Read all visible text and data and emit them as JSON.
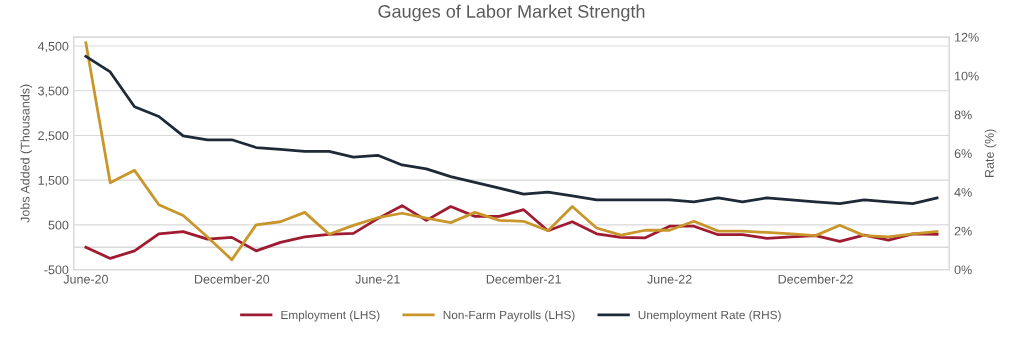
{
  "chart_data": {
    "type": "line",
    "title": "Gauges of Labor Market Strength",
    "ylabel": "Jobs Added (Thousands)",
    "y2label": "Rate (%)",
    "categories": [
      "June-20",
      null,
      null,
      null,
      null,
      null,
      "December-20",
      null,
      null,
      null,
      null,
      null,
      "June-21",
      null,
      null,
      null,
      null,
      null,
      "December-21",
      null,
      null,
      null,
      null,
      null,
      "June-22",
      null,
      null,
      null,
      null,
      null,
      "December-22",
      null,
      null,
      null,
      null,
      null
    ],
    "series": [
      {
        "name": "Employment (LHS)",
        "color": "#9e1b32",
        "values": [
          0,
          -250,
          -80,
          300,
          350,
          180,
          220,
          -80,
          110,
          230,
          290,
          310,
          640,
          930,
          600,
          910,
          690,
          690,
          840,
          370,
          570,
          300,
          220,
          210,
          470,
          470,
          280,
          280,
          200,
          230,
          260,
          130,
          270,
          160,
          300,
          290
        ]
      },
      {
        "name": "Non-Farm Payrolls (LHS)",
        "color": "#c9962b",
        "values": [
          4570,
          1440,
          1720,
          950,
          710,
          230,
          -280,
          500,
          570,
          780,
          290,
          490,
          660,
          760,
          650,
          550,
          780,
          600,
          580,
          370,
          910,
          430,
          270,
          380,
          380,
          580,
          360,
          360,
          330,
          300,
          260,
          490,
          260,
          230,
          300,
          350
        ]
      },
      {
        "name": "Unemployment Rate (RHS)",
        "color": "#1f2a38",
        "axis": "y2",
        "values": [
          11.0,
          10.2,
          8.4,
          7.9,
          6.9,
          6.7,
          6.7,
          6.3,
          6.2,
          6.1,
          6.1,
          5.8,
          5.9,
          5.4,
          5.2,
          4.8,
          4.5,
          4.2,
          3.9,
          4.0,
          3.8,
          3.6,
          3.6,
          3.6,
          3.6,
          3.5,
          3.7,
          3.5,
          3.7,
          3.6,
          3.5,
          3.4,
          3.6,
          3.5,
          3.4,
          3.7
        ]
      }
    ],
    "ylim": [
      -500,
      4700
    ],
    "yticks": [
      {
        "value": -500,
        "label": "-500"
      },
      500,
      {
        "value": 1500,
        "label": "1,500"
      },
      {
        "value": 2500,
        "label": "2,500"
      },
      {
        "value": 3500,
        "label": "3,500"
      },
      {
        "value": 4500,
        "label": "4,500"
      }
    ],
    "y2lim": [
      0,
      12
    ],
    "y2ticks": [
      {
        "value": 0,
        "label": "0%"
      },
      {
        "value": 2,
        "label": "2%"
      },
      {
        "value": 4,
        "label": "4%"
      },
      {
        "value": 6,
        "label": "6%"
      },
      {
        "value": 8,
        "label": "8%"
      },
      {
        "value": 10,
        "label": "10%"
      },
      {
        "value": 12,
        "label": "12%"
      }
    ],
    "ref_lines": [
      {
        "axis": "y",
        "value": 0,
        "color": "#d9d9d9"
      }
    ],
    "grid": "y",
    "legend": "bottom",
    "marker": "none",
    "line_style": "solid"
  }
}
